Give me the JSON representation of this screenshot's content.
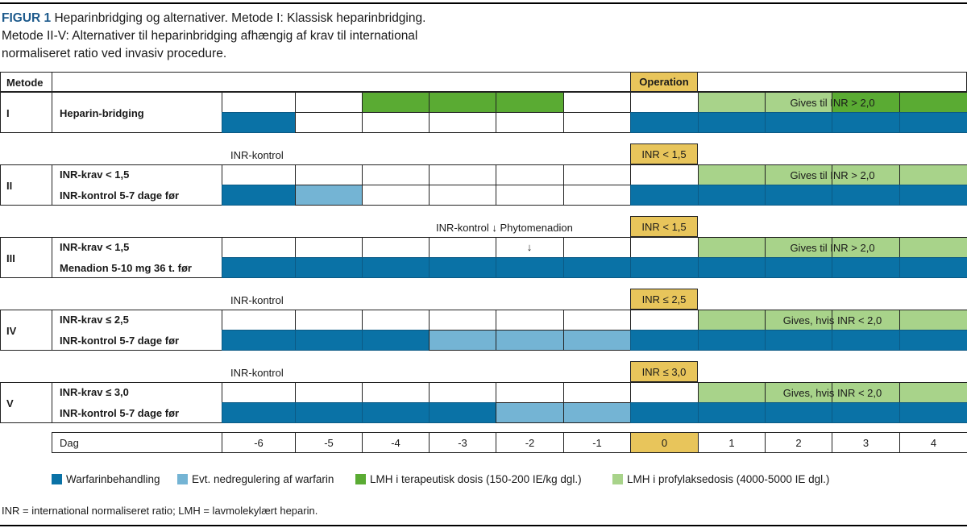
{
  "caption": {
    "figure_label": "FIGUR 1",
    "line1": " Heparinbridging og alternativer. Metode I: Klassisk heparinbridging.",
    "line2": "Metode II-V: Alternativer til heparinbridging afhængig af krav til international",
    "line3": "normaliseret ratio ved invasiv procedure."
  },
  "header": {
    "metode": "Metode",
    "operation": "Operation"
  },
  "colors": {
    "warfarin": "#0a72a6",
    "down": "#74b4d4",
    "lmh_ther": "#5aab33",
    "lmh_prof": "#a8d38a",
    "yellow": "#e8c55b"
  },
  "methods": [
    {
      "roman": "I",
      "line1": "Heparin-bridging",
      "line2": "",
      "note": "",
      "tag": "",
      "green_text": "Gives til INR > 2,0",
      "top": [
        null,
        null,
        "lmh_ther",
        "lmh_ther",
        "lmh_ther",
        null,
        null,
        "lmh_prof",
        "lmh_prof",
        "lmh_ther",
        "lmh_ther"
      ],
      "bottom": [
        "warfarin",
        null,
        null,
        null,
        null,
        null,
        "warfarin",
        "warfarin",
        "warfarin",
        "warfarin",
        "warfarin"
      ]
    },
    {
      "roman": "II",
      "line1": "INR-krav < 1,5",
      "line2": "INR-kontrol 5-7 dage før",
      "note": "INR-kontrol",
      "tag": "INR < 1,5",
      "green_text": "Gives til INR > 2,0",
      "top": [
        null,
        null,
        null,
        null,
        null,
        null,
        null,
        "lmh_prof",
        "lmh_prof",
        "lmh_prof",
        "lmh_prof"
      ],
      "bottom": [
        "warfarin",
        "down",
        null,
        null,
        null,
        null,
        "warfarin",
        "warfarin",
        "warfarin",
        "warfarin",
        "warfarin"
      ]
    },
    {
      "roman": "III",
      "line1": "INR-krav < 1,5",
      "line2": "Menadion 5-10 mg 36 t. før",
      "note": "INR-kontrol ↓ Phytomenadion",
      "tag": "INR < 1,5",
      "green_text": "Gives til INR > 2,0",
      "arrow": "↓",
      "top": [
        null,
        null,
        null,
        null,
        null,
        null,
        null,
        "lmh_prof",
        "lmh_prof",
        "lmh_prof",
        "lmh_prof"
      ],
      "bottom": [
        "warfarin",
        "warfarin",
        "warfarin",
        "warfarin",
        "warfarin",
        "warfarin",
        "warfarin",
        "warfarin",
        "warfarin",
        "warfarin",
        "warfarin"
      ]
    },
    {
      "roman": "IV",
      "line1": "INR-krav ≤ 2,5",
      "line2": "INR-kontrol 5-7 dage før",
      "note": "INR-kontrol",
      "tag": "INR ≤ 2,5",
      "green_text": "Gives, hvis INR < 2,0",
      "top": [
        null,
        null,
        null,
        null,
        null,
        null,
        null,
        "lmh_prof",
        "lmh_prof",
        "lmh_prof",
        "lmh_prof"
      ],
      "bottom": [
        "warfarin",
        "warfarin",
        "warfarin",
        "down",
        "down",
        "down",
        "warfarin",
        "warfarin",
        "warfarin",
        "warfarin",
        "warfarin"
      ]
    },
    {
      "roman": "V",
      "line1": "INR-krav ≤ 3,0",
      "line2": "INR-kontrol 5-7 dage før",
      "note": "INR-kontrol",
      "tag": "INR ≤ 3,0",
      "green_text": "Gives, hvis INR < 2,0",
      "top": [
        null,
        null,
        null,
        null,
        null,
        null,
        null,
        "lmh_prof",
        "lmh_prof",
        "lmh_prof",
        "lmh_prof"
      ],
      "bottom": [
        "warfarin",
        "warfarin",
        "warfarin",
        "warfarin",
        "down",
        "down",
        "warfarin",
        "warfarin",
        "warfarin",
        "warfarin",
        "warfarin"
      ]
    }
  ],
  "days": {
    "label": "Dag",
    "values": [
      "-6",
      "-5",
      "-4",
      "-3",
      "-2",
      "-1",
      "0",
      "1",
      "2",
      "3",
      "4"
    ]
  },
  "legend": [
    {
      "key": "warfarin",
      "label": "Warfarinbehandling"
    },
    {
      "key": "down",
      "label": "Evt. nedregulering af warfarin"
    },
    {
      "key": "lmh_ther",
      "label": "LMH i terapeutisk dosis (150-200 IE/kg dgl.)"
    },
    {
      "key": "lmh_prof",
      "label": "LMH i profylaksedosis (4000-5000 IE dgl.)"
    }
  ],
  "footnote": "INR = international normaliseret ratio; LMH = lavmolekylært heparin."
}
